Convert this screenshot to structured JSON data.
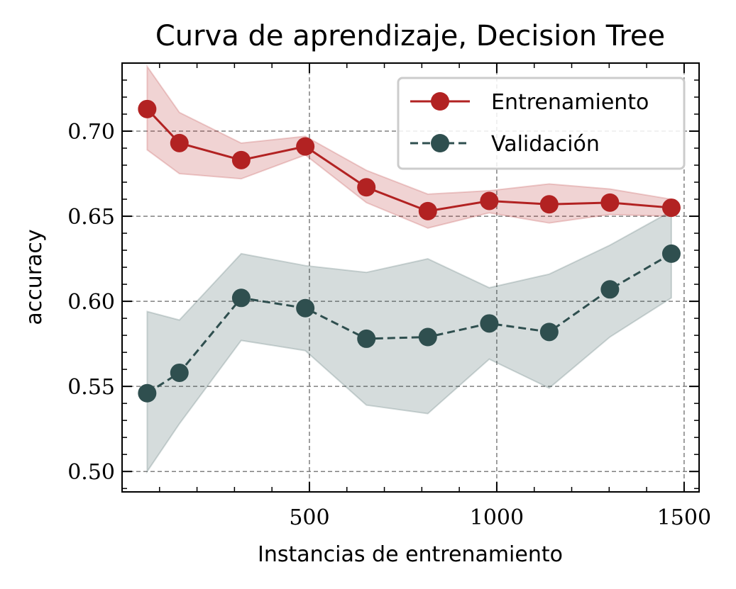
{
  "chart_data": {
    "type": "line",
    "title": "Curva de aprendizaje, Decision Tree",
    "xlabel": "Instancias de entrenamiento",
    "ylabel": "accuracy",
    "xlim": [
      0,
      1540
    ],
    "ylim": [
      0.488,
      0.74
    ],
    "xticks": [
      500,
      1000,
      1500
    ],
    "xtick_labels": [
      "500",
      "1000",
      "1500"
    ],
    "yticks": [
      0.5,
      0.55,
      0.6,
      0.65,
      0.7
    ],
    "ytick_labels": [
      "0.50",
      "0.55",
      "0.60",
      "0.65",
      "0.70"
    ],
    "grid": true,
    "legend_position": "top-right",
    "x": [
      67,
      153,
      318,
      489,
      652,
      816,
      980,
      1140,
      1302,
      1466
    ],
    "series": [
      {
        "name": "Entrenamiento",
        "color": "#b22222",
        "linestyle": "solid",
        "marker": "circle",
        "values": [
          0.713,
          0.693,
          0.683,
          0.691,
          0.667,
          0.653,
          0.659,
          0.657,
          0.658,
          0.655
        ],
        "band_upper": [
          0.738,
          0.711,
          0.693,
          0.697,
          0.677,
          0.663,
          0.665,
          0.669,
          0.666,
          0.66
        ],
        "band_lower": [
          0.689,
          0.675,
          0.672,
          0.686,
          0.658,
          0.643,
          0.652,
          0.646,
          0.651,
          0.65
        ]
      },
      {
        "name": "Validación",
        "color": "#2f4f4f",
        "linestyle": "dashed",
        "marker": "circle",
        "values": [
          0.546,
          0.558,
          0.602,
          0.596,
          0.578,
          0.579,
          0.587,
          0.582,
          0.607,
          0.628
        ],
        "band_upper": [
          0.594,
          0.589,
          0.628,
          0.621,
          0.617,
          0.625,
          0.608,
          0.616,
          0.633,
          0.653
        ],
        "band_lower": [
          0.5,
          0.528,
          0.577,
          0.571,
          0.539,
          0.534,
          0.566,
          0.549,
          0.579,
          0.602
        ]
      }
    ]
  }
}
